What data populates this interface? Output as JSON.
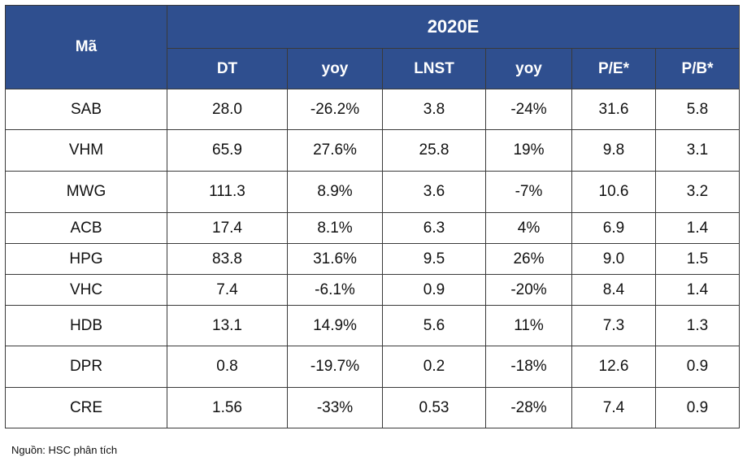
{
  "table": {
    "code_header": "Mã",
    "year_header": "2020E",
    "columns": [
      "DT",
      "yoy",
      "LNST",
      "yoy",
      "P/E*",
      "P/B*"
    ],
    "rows": [
      {
        "code": "SAB",
        "cells": [
          "28.0",
          "-26.2%",
          "3.8",
          "-24%",
          "31.6",
          "5.8"
        ]
      },
      {
        "code": "VHM",
        "cells": [
          "65.9",
          "27.6%",
          "25.8",
          "19%",
          "9.8",
          "3.1"
        ]
      },
      {
        "code": "MWG",
        "cells": [
          "111.3",
          "8.9%",
          "3.6",
          "-7%",
          "10.6",
          "3.2"
        ]
      },
      {
        "code": "ACB",
        "cells": [
          "17.4",
          "8.1%",
          "6.3",
          "4%",
          "6.9",
          "1.4"
        ]
      },
      {
        "code": "HPG",
        "cells": [
          "83.8",
          "31.6%",
          "9.5",
          "26%",
          "9.0",
          "1.5"
        ]
      },
      {
        "code": "VHC",
        "cells": [
          "7.4",
          "-6.1%",
          "0.9",
          "-20%",
          "8.4",
          "1.4"
        ]
      },
      {
        "code": "HDB",
        "cells": [
          "13.1",
          "14.9%",
          "5.6",
          "11%",
          "7.3",
          "1.3"
        ]
      },
      {
        "code": "DPR",
        "cells": [
          "0.8",
          "-19.7%",
          "0.2",
          "-18%",
          "12.6",
          "0.9"
        ]
      },
      {
        "code": "CRE",
        "cells": [
          "1.56",
          "-33%",
          "0.53",
          "-28%",
          "7.4",
          "0.9"
        ]
      }
    ]
  },
  "source": "Nguồn: HSC phân tích"
}
